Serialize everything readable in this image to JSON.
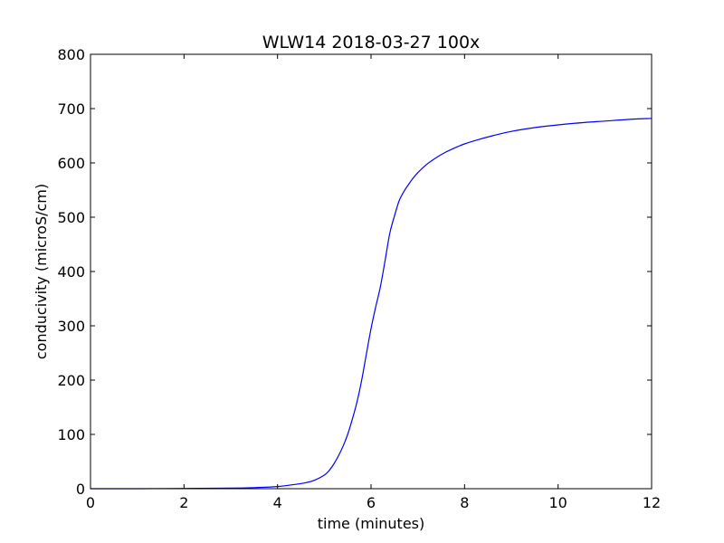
{
  "chart_data": {
    "type": "line",
    "title": "WLW14 2018-03-27 100x",
    "xlabel": "time (minutes)",
    "ylabel": "conducivity (microS/cm)",
    "xlim": [
      0,
      12
    ],
    "ylim": [
      0,
      800
    ],
    "xticks": [
      0,
      2,
      4,
      6,
      8,
      10,
      12
    ],
    "yticks": [
      0,
      100,
      200,
      300,
      400,
      500,
      600,
      700,
      800
    ],
    "grid": false,
    "legend": "none",
    "series": [
      {
        "color": "#0000ff",
        "x": [
          0,
          1,
          2,
          3,
          3.5,
          4,
          4.3,
          4.6,
          4.8,
          5.0,
          5.1,
          5.2,
          5.3,
          5.4,
          5.5,
          5.6,
          5.7,
          5.8,
          5.9,
          6.0,
          6.1,
          6.2,
          6.3,
          6.4,
          6.5,
          6.6,
          6.7,
          6.8,
          6.9,
          7.0,
          7.2,
          7.4,
          7.6,
          7.8,
          8.0,
          8.3,
          8.6,
          9.0,
          9.5,
          10.0,
          10.5,
          11.0,
          11.5,
          12.0
        ],
        "y": [
          0,
          0,
          0.5,
          1,
          2,
          4,
          7,
          11,
          16,
          25,
          33,
          45,
          60,
          78,
          100,
          128,
          160,
          200,
          248,
          295,
          335,
          372,
          420,
          470,
          502,
          530,
          547,
          560,
          572,
          582,
          598,
          610,
          620,
          628,
          635,
          643,
          650,
          658,
          665,
          670,
          674,
          677,
          680,
          682
        ]
      }
    ]
  }
}
